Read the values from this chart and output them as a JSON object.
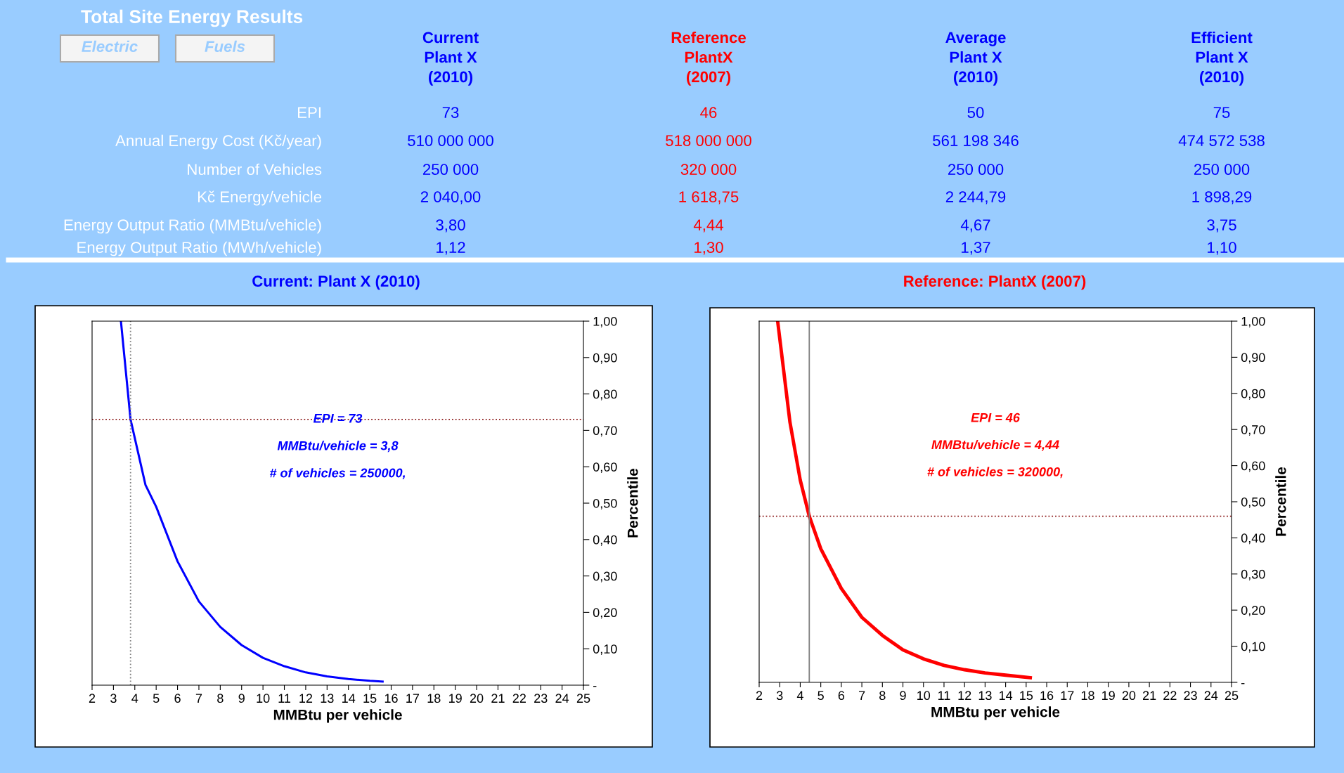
{
  "chart_data": [
    {
      "type": "other",
      "title": "Total Site Energy Results",
      "annotations": [
        "Electric",
        "Fuels"
      ],
      "categories": [
        "Current\nPlant X\n(2010)",
        "Reference\nPlantX\n(2007)",
        "Average\nPlant X\n(2010)",
        "Efficient\nPlant X\n(2010)"
      ],
      "colors": [
        "#0000ff",
        "#ff0000",
        "#0000ff",
        "#0000ff"
      ],
      "y_categories": [
        "EPI",
        "Annual Energy Cost (Kč/year)",
        "Number of Vehicles",
        "Kč Energy/vehicle",
        "Energy Output Ratio (MMBtu/vehicle)",
        "Energy Output Ratio (MWh/vehicle)"
      ],
      "cell_labels": [
        [
          "73",
          "46",
          "50",
          "75"
        ],
        [
          "510 000 000",
          "518 000 000",
          "561 198 346",
          "474 572 538"
        ],
        [
          "250 000",
          "320 000",
          "250 000",
          "250 000"
        ],
        [
          "2 040,00",
          "1 618,75",
          "2 244,79",
          "1 898,29"
        ],
        [
          "3,80",
          "4,44",
          "4,67",
          "3,75"
        ],
        [
          "1,12",
          "1,30",
          "1,37",
          "1,10"
        ]
      ]
    },
    {
      "type": "line",
      "title": "Current: Plant X (2010)",
      "xlabel": "MMBtu per vehicle",
      "ylabel": "Percentile",
      "series": [
        {
          "color": "#0000ff",
          "x": [
            3.35,
            3.8,
            4.5,
            5,
            6,
            7,
            8,
            9,
            10,
            11,
            12,
            13,
            14,
            15,
            15.6
          ],
          "values": [
            1.0,
            0.73,
            0.55,
            0.49,
            0.34,
            0.23,
            0.16,
            0.11,
            0.075,
            0.052,
            0.035,
            0.024,
            0.017,
            0.012,
            0.01
          ]
        }
      ],
      "xlim": [
        2,
        25
      ],
      "xticks": [
        2,
        3,
        4,
        5,
        6,
        7,
        8,
        9,
        10,
        11,
        12,
        13,
        14,
        15,
        16,
        17,
        18,
        19,
        20,
        21,
        22,
        23,
        24,
        25
      ],
      "ylim": [
        0,
        1
      ],
      "yticks": [
        {
          "value": 0,
          "label": "-"
        },
        {
          "value": 0.1,
          "label": "0,10"
        },
        {
          "value": 0.2,
          "label": "0,20"
        },
        {
          "value": 0.3,
          "label": "0,30"
        },
        {
          "value": 0.4,
          "label": "0,40"
        },
        {
          "value": 0.5,
          "label": "0,50"
        },
        {
          "value": 0.6,
          "label": "0,60"
        },
        {
          "value": 0.7,
          "label": "0,70"
        },
        {
          "value": 0.8,
          "label": "0,80"
        },
        {
          "value": 0.9,
          "label": "0,90"
        },
        {
          "value": 1.0,
          "label": "1,00"
        }
      ],
      "ref_lines": [
        {
          "axis": "y",
          "value": 0.73,
          "color": "#8b1a1a",
          "line_style": "dotted"
        },
        {
          "axis": "x",
          "value": 3.8,
          "color": "#808080",
          "line_style": "dotted"
        }
      ],
      "annotations": [
        "EPI = 73",
        "MMBtu/vehicle = 3,8",
        "# of vehicles = 250000,"
      ],
      "grid": false,
      "legend": false
    },
    {
      "type": "line",
      "title": "Reference: PlantX (2007)",
      "xlabel": "MMBtu per vehicle",
      "ylabel": "Percentile",
      "series": [
        {
          "color": "#ff0000",
          "x": [
            2.9,
            3.5,
            4,
            4.44,
            5,
            6,
            7,
            8,
            9,
            10,
            11,
            12,
            13,
            14,
            15.2
          ],
          "values": [
            1.0,
            0.72,
            0.56,
            0.46,
            0.37,
            0.26,
            0.18,
            0.13,
            0.09,
            0.065,
            0.047,
            0.035,
            0.026,
            0.02,
            0.013
          ]
        }
      ],
      "xlim": [
        2,
        25
      ],
      "xticks": [
        2,
        3,
        4,
        5,
        6,
        7,
        8,
        9,
        10,
        11,
        12,
        13,
        14,
        15,
        16,
        17,
        18,
        19,
        20,
        21,
        22,
        23,
        24,
        25
      ],
      "ylim": [
        0,
        1
      ],
      "yticks": [
        {
          "value": 0,
          "label": "-"
        },
        {
          "value": 0.1,
          "label": "0,10"
        },
        {
          "value": 0.2,
          "label": "0,20"
        },
        {
          "value": 0.3,
          "label": "0,30"
        },
        {
          "value": 0.4,
          "label": "0,40"
        },
        {
          "value": 0.5,
          "label": "0,50"
        },
        {
          "value": 0.6,
          "label": "0,60"
        },
        {
          "value": 0.7,
          "label": "0,70"
        },
        {
          "value": 0.8,
          "label": "0,80"
        },
        {
          "value": 0.9,
          "label": "0,90"
        },
        {
          "value": 1.0,
          "label": "1,00"
        }
      ],
      "ref_lines": [
        {
          "axis": "y",
          "value": 0.46,
          "color": "#8b1a1a",
          "line_style": "dotted"
        },
        {
          "axis": "x",
          "value": 4.44,
          "color": "#808080",
          "line_style": "solid"
        }
      ],
      "annotations": [
        "EPI = 46",
        "MMBtu/vehicle = 4,44",
        "# of vehicles = 320000,"
      ],
      "grid": false,
      "legend": false
    }
  ]
}
